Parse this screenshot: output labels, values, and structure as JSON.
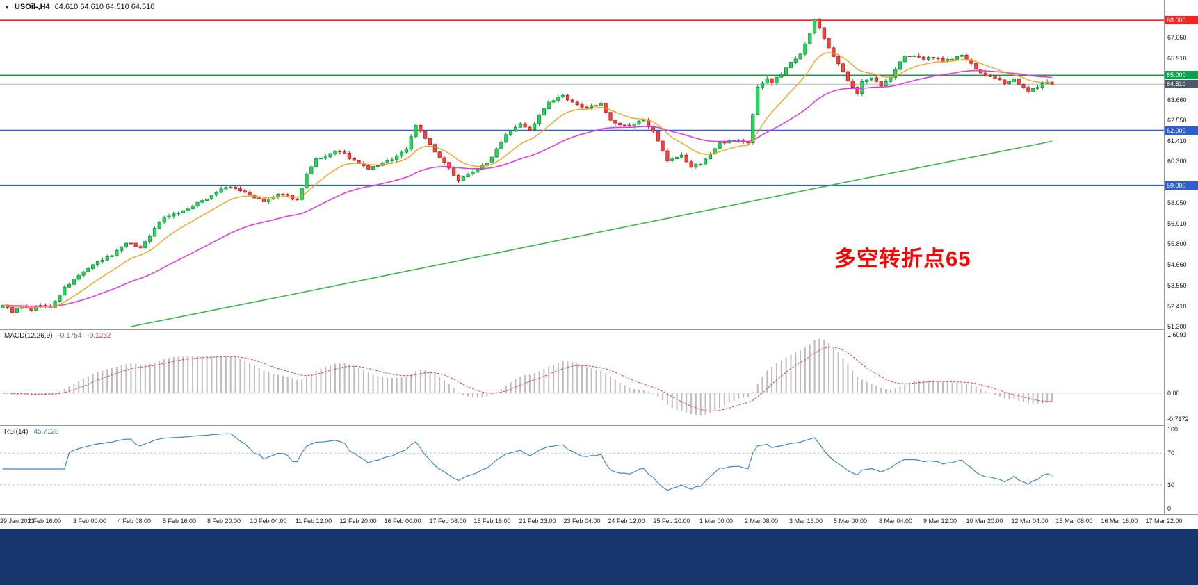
{
  "header": {
    "dropdown_icon": "▼",
    "symbol_timeframe": "USOil-,H4",
    "ohlc": "64.610 64.610 64.510 64.510"
  },
  "annotation": {
    "text": "多空转折点65"
  },
  "macd": {
    "label": "MACD(12,26,9)",
    "value_macd": "-0.1754",
    "value_signal": "-0.1252"
  },
  "rsi": {
    "label": "RSI(14)",
    "value": "45.7128"
  },
  "colors": {
    "candle_up": "#2bd35f",
    "candle_up_border": "#0c9436",
    "candle_down": "#f6453c",
    "candle_down_border": "#c01e1e",
    "macd_histogram": "#bcbcbc",
    "macd_signal": "#e03a3a",
    "rsi_line": "#3d85c8",
    "annotation": "#ff0000",
    "footer": "#17366e",
    "axis_text": "#1a1a1a"
  },
  "chart_data": {
    "type": "candlestick",
    "symbol": "USOil-",
    "timeframe": "H4",
    "ohlc_current": {
      "open": 64.61,
      "high": 64.61,
      "low": 64.51,
      "close": 64.51
    },
    "ylim": [
      51.3,
      68.35
    ],
    "candle_count": 222,
    "x_labels": [
      "29 Jan 2021",
      "1 Feb 16:00",
      "3 Feb 00:00",
      "4 Feb 08:00",
      "5 Feb 16:00",
      "8 Feb 20:00",
      "10 Feb 04:00",
      "11 Feb 12:00",
      "12 Feb 20:00",
      "16 Feb 00:00",
      "17 Feb 08:00",
      "18 Feb 16:00",
      "21 Feb 23:00",
      "23 Feb 04:00",
      "24 Feb 12:00",
      "25 Feb 20:00",
      "1 Mar 00:00",
      "2 Mar 08:00",
      "3 Mar 16:00",
      "5 Mar 00:00",
      "8 Mar 04:00",
      "9 Mar 12:00",
      "10 Mar 20:00",
      "12 Mar 04:00",
      "15 Mar 08:00",
      "16 Mar 16:00",
      "17 Mar 22:00"
    ],
    "y_ticks": [
      67.05,
      65.91,
      63.66,
      62.55,
      61.41,
      60.3,
      58.05,
      56.91,
      55.8,
      54.66,
      53.55,
      52.41,
      51.3
    ],
    "hlines": [
      {
        "price": 68.0,
        "color": "#ff1f1f",
        "width": 1.6,
        "label": "68.000",
        "label_bg": "#ff1f1f"
      },
      {
        "price": 65.0,
        "color": "#0ca04a",
        "width": 1.8,
        "label": "65.000",
        "label_bg": "#0ca04a"
      },
      {
        "price": 64.51,
        "color": "#aab6c2",
        "width": 1.0,
        "label": "64.510",
        "label_bg": "#4e5b6b"
      },
      {
        "price": 62.0,
        "color": "#2b5ed7",
        "width": 1.8,
        "label": "62.000",
        "label_bg": "#2b5ed7"
      },
      {
        "price": 59.0,
        "color": "#2b5ed7",
        "width": 1.8,
        "label": "59.000",
        "label_bg": "#2b5ed7"
      }
    ],
    "price_path": [
      [
        0,
        52.5
      ],
      [
        2,
        52.1
      ],
      [
        4,
        52.4
      ],
      [
        6,
        52.2
      ],
      [
        8,
        52.5
      ],
      [
        10,
        52.3
      ],
      [
        13,
        53.4
      ],
      [
        17,
        54.3
      ],
      [
        20,
        54.8
      ],
      [
        23,
        55.2
      ],
      [
        26,
        55.9
      ],
      [
        29,
        55.6
      ],
      [
        34,
        57.3
      ],
      [
        38,
        57.6
      ],
      [
        43,
        58.3
      ],
      [
        46,
        58.8
      ],
      [
        48,
        58.9
      ],
      [
        51,
        58.6
      ],
      [
        55,
        58.1
      ],
      [
        58,
        58.5
      ],
      [
        60,
        58.4
      ],
      [
        62,
        58.2
      ],
      [
        64,
        59.6
      ],
      [
        66,
        60.4
      ],
      [
        68,
        60.5
      ],
      [
        70,
        60.9
      ],
      [
        72,
        60.7
      ],
      [
        74,
        60.3
      ],
      [
        77,
        59.9
      ],
      [
        79,
        60.1
      ],
      [
        81,
        60.3
      ],
      [
        83,
        60.6
      ],
      [
        85,
        61.0
      ],
      [
        87,
        62.3
      ],
      [
        89,
        61.6
      ],
      [
        91,
        60.8
      ],
      [
        93,
        60.2
      ],
      [
        94,
        59.9
      ],
      [
        96,
        59.3
      ],
      [
        98,
        59.6
      ],
      [
        100,
        59.9
      ],
      [
        102,
        60.2
      ],
      [
        104,
        61.0
      ],
      [
        106,
        61.8
      ],
      [
        109,
        62.4
      ],
      [
        111,
        62.0
      ],
      [
        113,
        62.8
      ],
      [
        115,
        63.5
      ],
      [
        118,
        63.9
      ],
      [
        119,
        63.6
      ],
      [
        121,
        63.4
      ],
      [
        123,
        63.2
      ],
      [
        126,
        63.5
      ],
      [
        128,
        62.5
      ],
      [
        130,
        62.3
      ],
      [
        132,
        62.2
      ],
      [
        135,
        62.6
      ],
      [
        137,
        61.9
      ],
      [
        140,
        60.3
      ],
      [
        143,
        60.6
      ],
      [
        145,
        60.0
      ],
      [
        147,
        60.2
      ],
      [
        149,
        60.7
      ],
      [
        151,
        61.3
      ],
      [
        154,
        61.5
      ],
      [
        156,
        61.4
      ],
      [
        157,
        61.3
      ],
      [
        159,
        64.4
      ],
      [
        161,
        64.8
      ],
      [
        162,
        64.6
      ],
      [
        164,
        65.1
      ],
      [
        166,
        65.7
      ],
      [
        168,
        66.2
      ],
      [
        170,
        67.3
      ],
      [
        171,
        68.0
      ],
      [
        172,
        67.6
      ],
      [
        174,
        66.5
      ],
      [
        176,
        65.6
      ],
      [
        178,
        64.7
      ],
      [
        179,
        64.3
      ],
      [
        180,
        64.0
      ],
      [
        181,
        64.7
      ],
      [
        183,
        64.9
      ],
      [
        185,
        64.4
      ],
      [
        187,
        64.9
      ],
      [
        188,
        65.3
      ],
      [
        190,
        66.1
      ],
      [
        192,
        66.0
      ],
      [
        194,
        65.9
      ],
      [
        196,
        66.0
      ],
      [
        198,
        65.8
      ],
      [
        200,
        65.9
      ],
      [
        202,
        66.1
      ],
      [
        204,
        65.6
      ],
      [
        205,
        65.3
      ],
      [
        207,
        65.0
      ],
      [
        209,
        64.8
      ],
      [
        211,
        64.6
      ],
      [
        213,
        64.8
      ],
      [
        215,
        64.3
      ],
      [
        216,
        64.1
      ],
      [
        218,
        64.4
      ],
      [
        220,
        64.6
      ],
      [
        221,
        64.51
      ]
    ],
    "moving_averages": [
      {
        "name": "ma-fast",
        "color": "#f6a21a",
        "period": 12
      },
      {
        "name": "ma-mid",
        "color": "#e43be4",
        "period": 40
      },
      {
        "name": "ma-slow",
        "color": "#39b54a",
        "path": [
          [
            27,
            51.3
          ],
          [
            60,
            53.0
          ],
          [
            100,
            55.1
          ],
          [
            140,
            57.2
          ],
          [
            180,
            59.3
          ],
          [
            221,
            61.4
          ]
        ]
      }
    ],
    "indicators": {
      "macd": {
        "params": [
          12,
          26,
          9
        ],
        "macd_value": -0.1754,
        "signal_value": -0.1252,
        "range": [
          -0.7172,
          1.6093
        ],
        "axis_ticks": [
          [
            1.6093,
            "1.6093"
          ],
          [
            0,
            "0.00"
          ],
          [
            -0.7172,
            "-0.7172"
          ]
        ]
      },
      "rsi": {
        "period": 14,
        "value": 45.7128,
        "range": [
          0,
          100
        ],
        "levels": [
          70,
          30
        ],
        "axis_ticks": [
          [
            100,
            "100"
          ],
          [
            70,
            "70"
          ],
          [
            30,
            "30"
          ],
          [
            0,
            "0"
          ]
        ]
      }
    }
  }
}
